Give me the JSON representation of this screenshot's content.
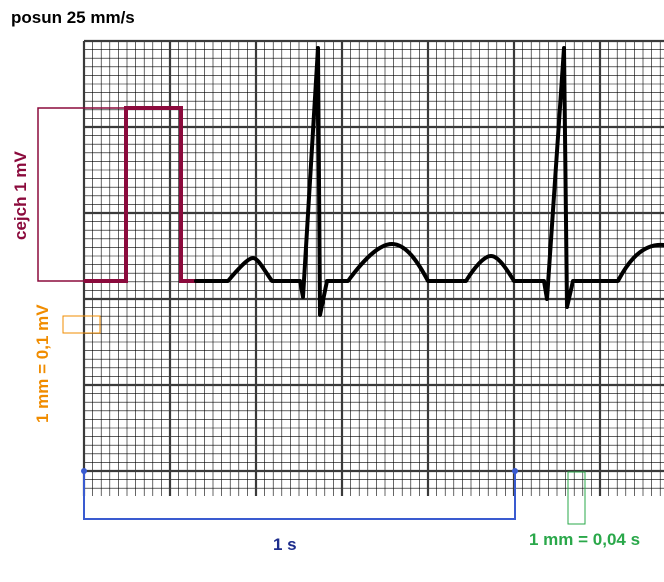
{
  "title": "posun 25 mm/s",
  "labels": {
    "calibration": "cejch 1 mV",
    "amplitude_scale": "1 mm = 0,1 mV",
    "time_bracket": "1 s",
    "time_scale": "1 mm = 0,04 s"
  },
  "colors": {
    "background": "#ffffff",
    "grid_minor": "#000000",
    "grid_major": "#3a3a3a",
    "ecg_trace": "#000000",
    "calibration": "#8b0a3c",
    "amplitude_note": "#f08c00",
    "time_bracket": "#3a5bd0",
    "time_bracket_text": "#1c2c8c",
    "time_scale": "#2aa84a"
  }
}
